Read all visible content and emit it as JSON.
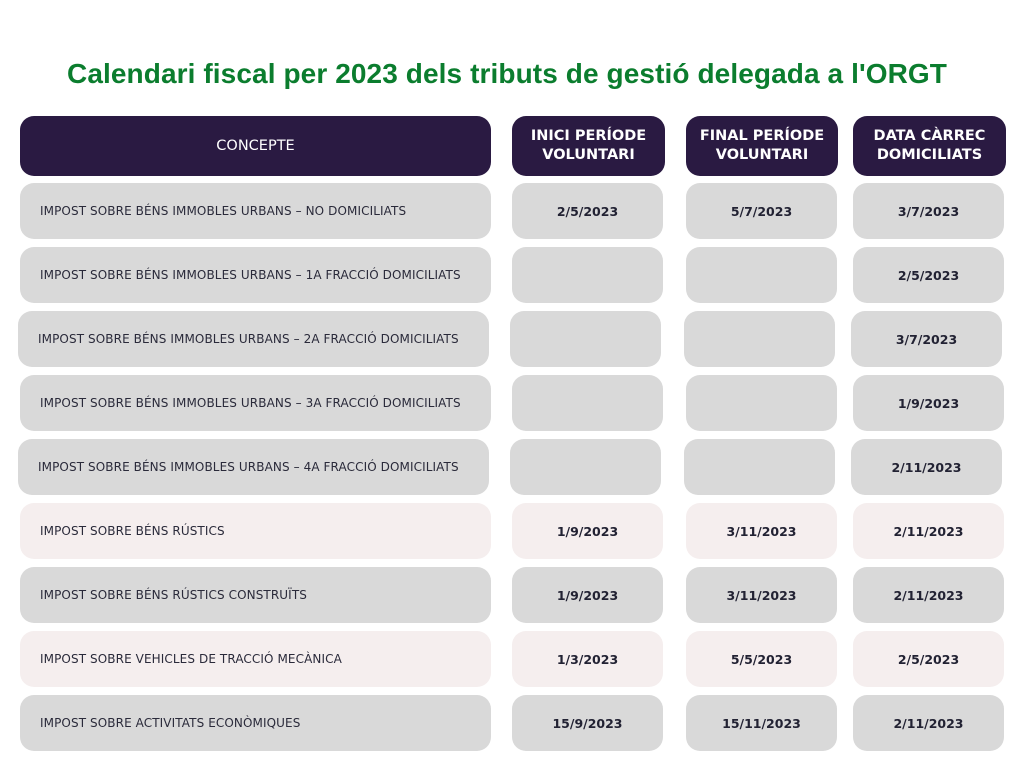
{
  "title": "Calendari fiscal per 2023 dels tributs de gestió delegada a l'ORGT",
  "headers": {
    "concepte": "CONCEPTE",
    "inici": "INICI PERÍODE\nVOLUNTARI",
    "final": "FINAL PERÍODE\nVOLUNTARI",
    "carrec": "DATA CÀRREC\nDOMICILIATS"
  },
  "colors": {
    "title": "#0b7d2e",
    "header_bg": "#2a1a42",
    "row_gray": "#d9d9d9",
    "row_pink": "#f5eeee"
  },
  "rows": [
    {
      "concepte": "IMPOST SOBRE BÉNS IMMOBLES URBANS – NO DOMICILIATS",
      "inici": "2/5/2023",
      "final": "5/7/2023",
      "carrec": "3/7/2023",
      "tone": "gray"
    },
    {
      "concepte": "IMPOST SOBRE BÉNS IMMOBLES URBANS – 1A FRACCIÓ DOMICILIATS",
      "inici": "",
      "final": "",
      "carrec": "2/5/2023",
      "tone": "gray"
    },
    {
      "concepte": "IMPOST SOBRE BÉNS IMMOBLES URBANS – 2A FRACCIÓ DOMICILIATS",
      "inici": "",
      "final": "",
      "carrec": "3/7/2023",
      "tone": "gray"
    },
    {
      "concepte": "IMPOST SOBRE BÉNS IMMOBLES URBANS – 3A FRACCIÓ DOMICILIATS",
      "inici": "",
      "final": "",
      "carrec": "1/9/2023",
      "tone": "gray"
    },
    {
      "concepte": "IMPOST SOBRE BÉNS IMMOBLES URBANS – 4A FRACCIÓ DOMICILIATS",
      "inici": "",
      "final": "",
      "carrec": "2/11/2023",
      "tone": "gray"
    },
    {
      "concepte": "IMPOST SOBRE BÉNS RÚSTICS",
      "inici": "1/9/2023",
      "final": "3/11/2023",
      "carrec": "2/11/2023",
      "tone": "pink"
    },
    {
      "concepte": "IMPOST SOBRE BÉNS RÚSTICS CONSTRUÏTS",
      "inici": "1/9/2023",
      "final": "3/11/2023",
      "carrec": "2/11/2023",
      "tone": "gray"
    },
    {
      "concepte": "IMPOST SOBRE VEHICLES DE TRACCIÓ MECÀNICA",
      "inici": "1/3/2023",
      "final": "5/5/2023",
      "carrec": "2/5/2023",
      "tone": "pink"
    },
    {
      "concepte": "IMPOST SOBRE ACTIVITATS ECONÒMIQUES",
      "inici": "15/9/2023",
      "final": "15/11/2023",
      "carrec": "2/11/2023",
      "tone": "gray"
    }
  ]
}
